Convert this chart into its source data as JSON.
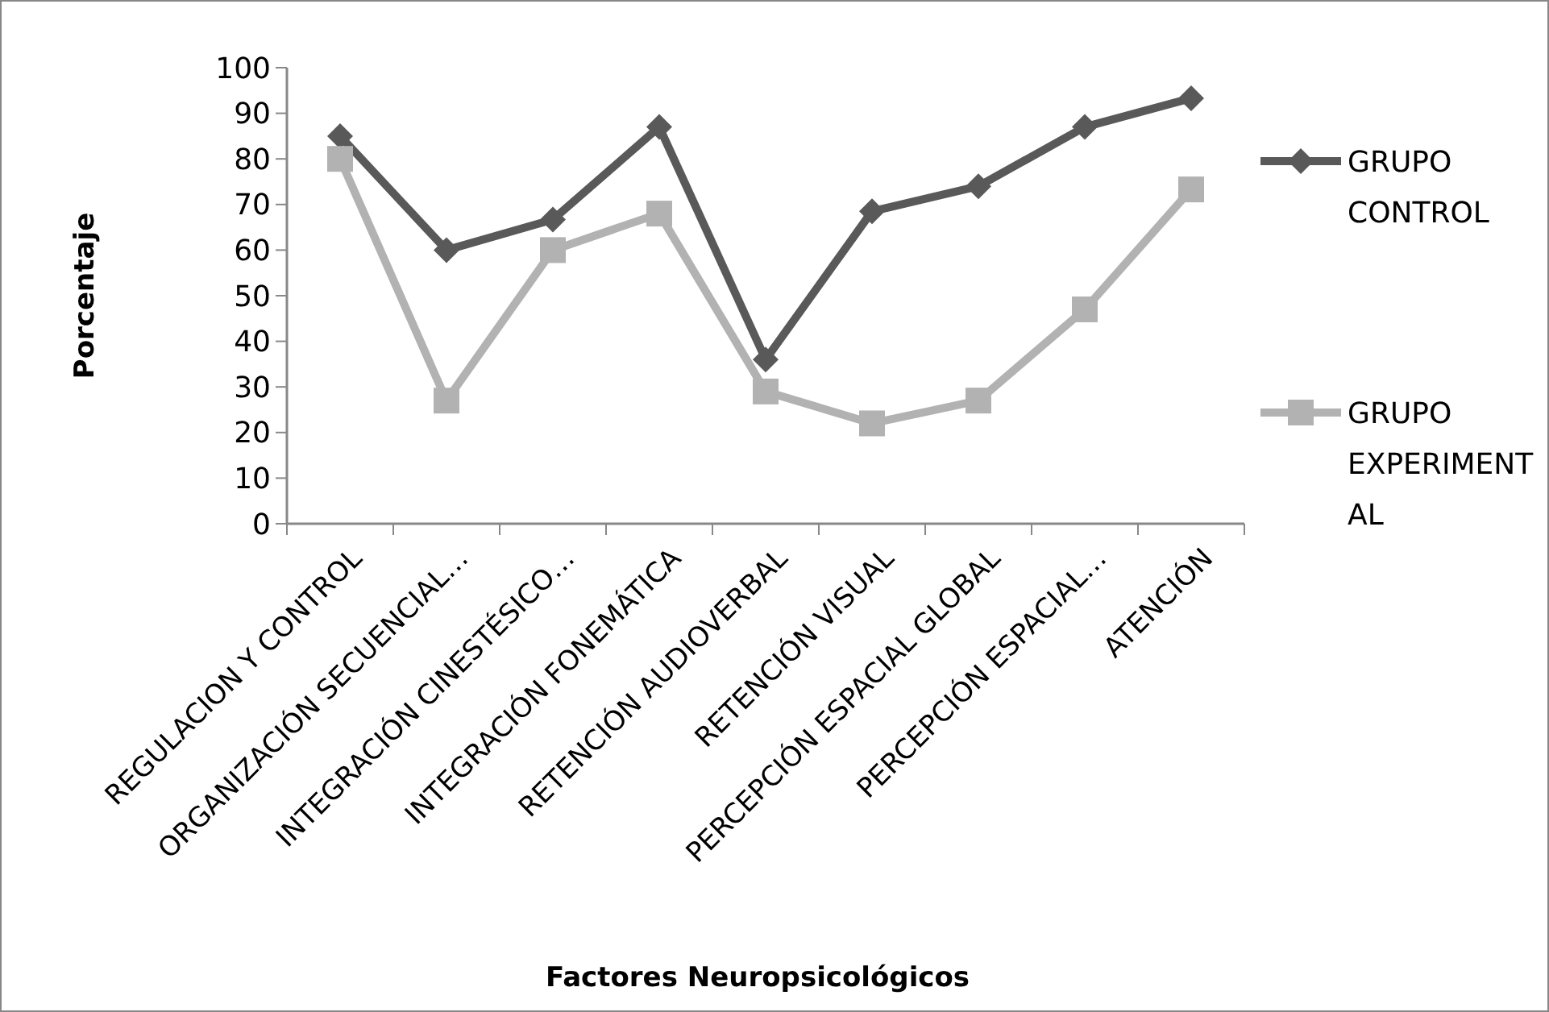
{
  "chart_data": {
    "type": "line",
    "xlabel": "Factores Neuropsicológicos",
    "ylabel": "Porcentaje",
    "categories": [
      "REGULACION Y CONTROL",
      "ORGANIZACIÓN SECUENCIAL…",
      "INTEGRACIÓN CINESTÉSICO…",
      "INTEGRACIÓN FONEMÁTICA",
      "RETENCIÓN AUDIOVERBAL",
      "RETENCIÓN VISUAL",
      "PERCEPCIÓN ESPACIAL GLOBAL",
      "PERCEPCIÓN ESPACIAL…",
      "ATENCIÓN"
    ],
    "series": [
      {
        "name": "GRUPO CONTROL",
        "color": "#595959",
        "marker": "diamond",
        "values": [
          85,
          60,
          66.7,
          87,
          36,
          68.5,
          74,
          87,
          93.3
        ]
      },
      {
        "name": "GRUPO EXPERIMENTAL",
        "color": "#b2b2b2",
        "marker": "square",
        "values": [
          80,
          27,
          60,
          68,
          29,
          22,
          27,
          47,
          73.3
        ]
      }
    ],
    "ylim": [
      0,
      100
    ],
    "yticks": [
      0,
      10,
      20,
      30,
      40,
      50,
      60,
      70,
      80,
      90,
      100
    ],
    "grid": false,
    "legend": "right"
  }
}
